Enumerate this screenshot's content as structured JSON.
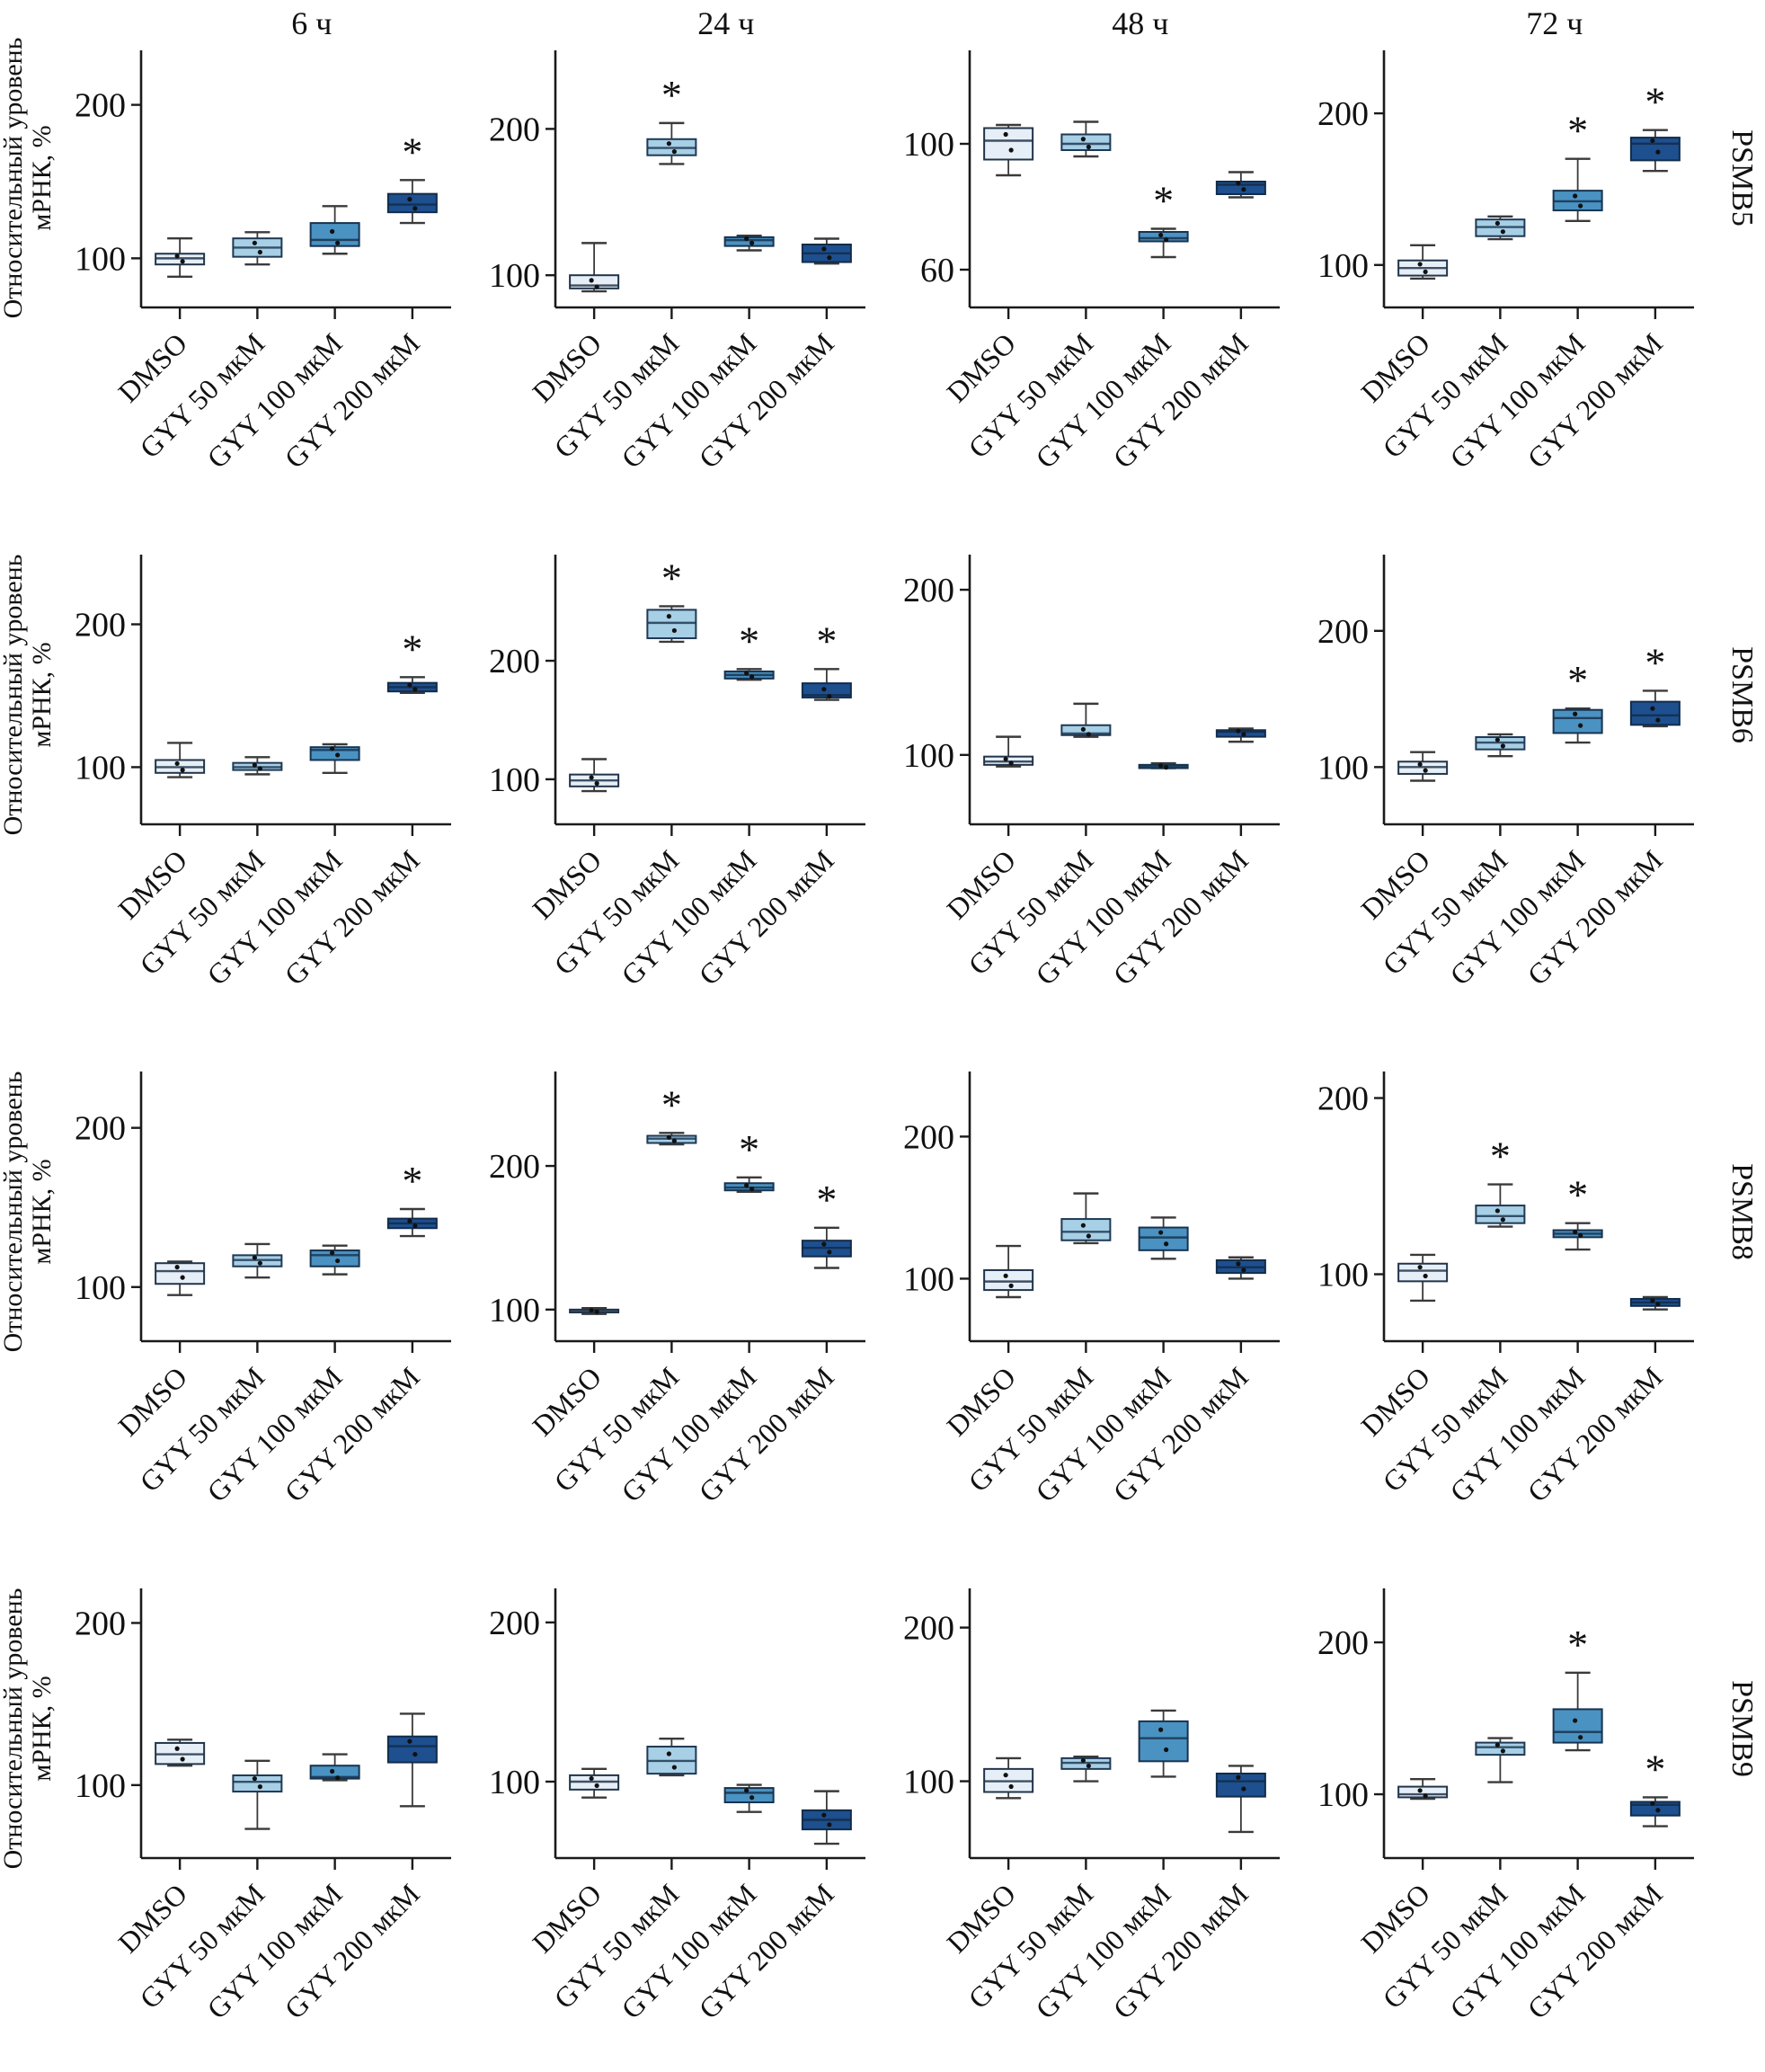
{
  "figure": {
    "ylabel_line1": "Относительный уровень",
    "ylabel_line2": "мРНК, %",
    "col_titles": [
      "6 ч",
      "24 ч",
      "48 ч",
      "72 ч"
    ],
    "row_labels": [
      "PSMB5",
      "PSMB6",
      "PSMB8",
      "PSMB9"
    ],
    "categories": [
      "DMSO",
      "GYY 50 мкМ",
      "GYY 100 мкМ",
      "GYY 200 мкМ"
    ],
    "significance_marker": "*",
    "colors": {
      "fills": [
        "#e6eff7",
        "#a7cfe5",
        "#4a92c1",
        "#1e4f8e"
      ],
      "edges": [
        "#22344a",
        "#1f3955",
        "#173350",
        "#122c4a"
      ],
      "whisker": "#3a3a3a",
      "axis": "#1a1a1a",
      "dot": "#111111"
    }
  },
  "chart_data": [
    {
      "type": "box",
      "gene": "PSMB5",
      "time": "6 ч",
      "ylim": [
        68,
        232
      ],
      "yticks": [
        100,
        200
      ],
      "boxes": [
        {
          "label": "DMSO",
          "whislo": 88,
          "q1": 96,
          "med": 100,
          "q3": 103,
          "whishi": 113,
          "sig": false
        },
        {
          "label": "GYY 50 мкМ",
          "whislo": 96,
          "q1": 101,
          "med": 107,
          "q3": 113,
          "whishi": 117,
          "sig": false
        },
        {
          "label": "GYY 100 мкМ",
          "whislo": 103,
          "q1": 108,
          "med": 112,
          "q3": 123,
          "whishi": 134,
          "sig": false
        },
        {
          "label": "GYY 200 мкМ",
          "whislo": 123,
          "q1": 130,
          "med": 135,
          "q3": 142,
          "whishi": 151,
          "sig": true
        }
      ]
    },
    {
      "type": "box",
      "gene": "PSMB5",
      "time": "24 ч",
      "ylim": [
        78,
        250
      ],
      "yticks": [
        100,
        200
      ],
      "boxes": [
        {
          "label": "DMSO",
          "whislo": 89,
          "q1": 91,
          "med": 93,
          "q3": 100,
          "whishi": 122,
          "sig": false
        },
        {
          "label": "GYY 50 мкМ",
          "whislo": 176,
          "q1": 182,
          "med": 187,
          "q3": 193,
          "whishi": 204,
          "sig": true
        },
        {
          "label": "GYY 100 мкМ",
          "whislo": 117,
          "q1": 120,
          "med": 124,
          "q3": 126,
          "whishi": 127,
          "sig": false
        },
        {
          "label": "GYY 200 мкМ",
          "whislo": 108,
          "q1": 109,
          "med": 115,
          "q3": 121,
          "whishi": 125,
          "sig": false
        }
      ]
    },
    {
      "type": "box",
      "gene": "PSMB5",
      "time": "48 ч",
      "ylim": [
        48,
        128
      ],
      "yticks": [
        60,
        100
      ],
      "boxes": [
        {
          "label": "DMSO",
          "whislo": 90,
          "q1": 95,
          "med": 101,
          "q3": 105,
          "whishi": 106,
          "sig": false
        },
        {
          "label": "GYY 50 мкМ",
          "whislo": 96,
          "q1": 98,
          "med": 100,
          "q3": 103,
          "whishi": 107,
          "sig": false
        },
        {
          "label": "GYY 100 мкМ",
          "whislo": 64,
          "q1": 69,
          "med": 70,
          "q3": 72,
          "whishi": 73,
          "sig": true
        },
        {
          "label": "GYY 200 мкМ",
          "whislo": 83,
          "q1": 84,
          "med": 87,
          "q3": 88,
          "whishi": 91,
          "sig": false
        }
      ]
    },
    {
      "type": "box",
      "gene": "PSMB5",
      "time": "72 ч",
      "ylim": [
        72,
        238
      ],
      "yticks": [
        100,
        200
      ],
      "boxes": [
        {
          "label": "DMSO",
          "whislo": 91,
          "q1": 93,
          "med": 98,
          "q3": 103,
          "whishi": 113,
          "sig": false
        },
        {
          "label": "GYY 50 мкМ",
          "whislo": 117,
          "q1": 119,
          "med": 125,
          "q3": 130,
          "whishi": 132,
          "sig": false
        },
        {
          "label": "GYY 100 мкМ",
          "whislo": 129,
          "q1": 136,
          "med": 142,
          "q3": 149,
          "whishi": 170,
          "sig": true
        },
        {
          "label": "GYY 200 мкМ",
          "whislo": 162,
          "q1": 169,
          "med": 180,
          "q3": 184,
          "whishi": 189,
          "sig": true
        }
      ]
    },
    {
      "type": "box",
      "gene": "PSMB6",
      "time": "6 ч",
      "ylim": [
        60,
        245
      ],
      "yticks": [
        100,
        200
      ],
      "boxes": [
        {
          "label": "DMSO",
          "whislo": 93,
          "q1": 96,
          "med": 100,
          "q3": 105,
          "whishi": 117,
          "sig": false
        },
        {
          "label": "GYY 50 мкМ",
          "whislo": 95,
          "q1": 98,
          "med": 100,
          "q3": 103,
          "whishi": 107,
          "sig": false
        },
        {
          "label": "GYY 100 мкМ",
          "whislo": 96,
          "q1": 105,
          "med": 112,
          "q3": 114,
          "whishi": 116,
          "sig": false
        },
        {
          "label": "GYY 200 мкМ",
          "whislo": 152,
          "q1": 153,
          "med": 156,
          "q3": 159,
          "whishi": 163,
          "sig": true
        }
      ]
    },
    {
      "type": "box",
      "gene": "PSMB6",
      "time": "24 ч",
      "ylim": [
        62,
        285
      ],
      "yticks": [
        100,
        200
      ],
      "boxes": [
        {
          "label": "DMSO",
          "whislo": 90,
          "q1": 94,
          "med": 99,
          "q3": 104,
          "whishi": 117,
          "sig": false
        },
        {
          "label": "GYY 50 мкМ",
          "whislo": 216,
          "q1": 219,
          "med": 232,
          "q3": 243,
          "whishi": 246,
          "sig": true
        },
        {
          "label": "GYY 100 мкМ",
          "whislo": 184,
          "q1": 185,
          "med": 188,
          "q3": 191,
          "whishi": 193,
          "sig": true
        },
        {
          "label": "GYY 200 мкМ",
          "whislo": 167,
          "q1": 169,
          "med": 171,
          "q3": 181,
          "whishi": 193,
          "sig": true
        }
      ]
    },
    {
      "type": "box",
      "gene": "PSMB6",
      "time": "48 ч",
      "ylim": [
        58,
        218
      ],
      "yticks": [
        100,
        200
      ],
      "boxes": [
        {
          "label": "DMSO",
          "whislo": 93,
          "q1": 94,
          "med": 96,
          "q3": 99,
          "whishi": 111,
          "sig": false
        },
        {
          "label": "GYY 50 мкМ",
          "whislo": 111,
          "q1": 112,
          "med": 113,
          "q3": 118,
          "whishi": 131,
          "sig": false
        },
        {
          "label": "GYY 100 мкМ",
          "whislo": 92,
          "q1": 92,
          "med": 93,
          "q3": 94,
          "whishi": 95,
          "sig": false
        },
        {
          "label": "GYY 200 мкМ",
          "whislo": 108,
          "q1": 111,
          "med": 114,
          "q3": 115,
          "whishi": 116,
          "sig": false
        }
      ]
    },
    {
      "type": "box",
      "gene": "PSMB6",
      "time": "72 ч",
      "ylim": [
        58,
        252
      ],
      "yticks": [
        100,
        200
      ],
      "boxes": [
        {
          "label": "DMSO",
          "whislo": 90,
          "q1": 95,
          "med": 100,
          "q3": 104,
          "whishi": 111,
          "sig": false
        },
        {
          "label": "GYY 50 мкМ",
          "whislo": 108,
          "q1": 113,
          "med": 118,
          "q3": 122,
          "whishi": 124,
          "sig": false
        },
        {
          "label": "GYY 100 мкМ",
          "whislo": 118,
          "q1": 125,
          "med": 136,
          "q3": 142,
          "whishi": 143,
          "sig": true
        },
        {
          "label": "GYY 200 мкМ",
          "whislo": 130,
          "q1": 131,
          "med": 138,
          "q3": 148,
          "whishi": 156,
          "sig": true
        }
      ]
    },
    {
      "type": "box",
      "gene": "PSMB8",
      "time": "6 ч",
      "ylim": [
        66,
        232
      ],
      "yticks": [
        100,
        200
      ],
      "boxes": [
        {
          "label": "DMSO",
          "whislo": 95,
          "q1": 102,
          "med": 110,
          "q3": 115,
          "whishi": 116,
          "sig": false
        },
        {
          "label": "GYY 50 мкМ",
          "whislo": 106,
          "q1": 113,
          "med": 117,
          "q3": 120,
          "whishi": 127,
          "sig": false
        },
        {
          "label": "GYY 100 мкМ",
          "whislo": 108,
          "q1": 113,
          "med": 120,
          "q3": 123,
          "whishi": 126,
          "sig": false
        },
        {
          "label": "GYY 200 мкМ",
          "whislo": 132,
          "q1": 137,
          "med": 140,
          "q3": 143,
          "whishi": 149,
          "sig": true
        }
      ]
    },
    {
      "type": "box",
      "gene": "PSMB8",
      "time": "24 ч",
      "ylim": [
        78,
        262
      ],
      "yticks": [
        100,
        200
      ],
      "boxes": [
        {
          "label": "DMSO",
          "whislo": 97,
          "q1": 98,
          "med": 99,
          "q3": 100,
          "whishi": 101,
          "sig": false
        },
        {
          "label": "GYY 50 мкМ",
          "whislo": 215,
          "q1": 216,
          "med": 219,
          "q3": 221,
          "whishi": 223,
          "sig": true
        },
        {
          "label": "GYY 100 мкМ",
          "whislo": 182,
          "q1": 183,
          "med": 185,
          "q3": 188,
          "whishi": 192,
          "sig": true
        },
        {
          "label": "GYY 200 мкМ",
          "whislo": 129,
          "q1": 137,
          "med": 143,
          "q3": 148,
          "whishi": 157,
          "sig": true
        }
      ]
    },
    {
      "type": "box",
      "gene": "PSMB8",
      "time": "48 ч",
      "ylim": [
        56,
        242
      ],
      "yticks": [
        100,
        200
      ],
      "boxes": [
        {
          "label": "DMSO",
          "whislo": 87,
          "q1": 92,
          "med": 98,
          "q3": 106,
          "whishi": 123,
          "sig": false
        },
        {
          "label": "GYY 50 мкМ",
          "whislo": 125,
          "q1": 127,
          "med": 133,
          "q3": 142,
          "whishi": 160,
          "sig": false
        },
        {
          "label": "GYY 100 мкМ",
          "whislo": 114,
          "q1": 120,
          "med": 129,
          "q3": 136,
          "whishi": 143,
          "sig": false
        },
        {
          "label": "GYY 200 мкМ",
          "whislo": 100,
          "q1": 104,
          "med": 108,
          "q3": 113,
          "whishi": 115,
          "sig": false
        }
      ]
    },
    {
      "type": "box",
      "gene": "PSMB8",
      "time": "72 ч",
      "ylim": [
        62,
        212
      ],
      "yticks": [
        100,
        200
      ],
      "boxes": [
        {
          "label": "DMSO",
          "whislo": 85,
          "q1": 96,
          "med": 102,
          "q3": 106,
          "whishi": 111,
          "sig": false
        },
        {
          "label": "GYY 50 мкМ",
          "whislo": 127,
          "q1": 129,
          "med": 133,
          "q3": 139,
          "whishi": 151,
          "sig": true
        },
        {
          "label": "GYY 100 мкМ",
          "whislo": 114,
          "q1": 121,
          "med": 123,
          "q3": 125,
          "whishi": 129,
          "sig": true
        },
        {
          "label": "GYY 200 мкМ",
          "whislo": 80,
          "q1": 82,
          "med": 84,
          "q3": 86,
          "whishi": 87,
          "sig": false
        }
      ]
    },
    {
      "type": "box",
      "gene": "PSMB9",
      "time": "6 ч",
      "ylim": [
        55,
        218
      ],
      "yticks": [
        100,
        200
      ],
      "boxes": [
        {
          "label": "DMSO",
          "whislo": 112,
          "q1": 113,
          "med": 119,
          "q3": 126,
          "whishi": 128,
          "sig": false
        },
        {
          "label": "GYY 50 мкМ",
          "whislo": 73,
          "q1": 96,
          "med": 102,
          "q3": 106,
          "whishi": 115,
          "sig": false
        },
        {
          "label": "GYY 100 мкМ",
          "whislo": 103,
          "q1": 104,
          "med": 105,
          "q3": 112,
          "whishi": 119,
          "sig": false
        },
        {
          "label": "GYY 200 мкМ",
          "whislo": 87,
          "q1": 114,
          "med": 124,
          "q3": 130,
          "whishi": 144,
          "sig": false
        }
      ]
    },
    {
      "type": "box",
      "gene": "PSMB9",
      "time": "24 ч",
      "ylim": [
        52,
        218
      ],
      "yticks": [
        100,
        200
      ],
      "boxes": [
        {
          "label": "DMSO",
          "whislo": 90,
          "q1": 95,
          "med": 100,
          "q3": 104,
          "whishi": 108,
          "sig": false
        },
        {
          "label": "GYY 50 мкМ",
          "whislo": 104,
          "q1": 105,
          "med": 113,
          "q3": 122,
          "whishi": 127,
          "sig": false
        },
        {
          "label": "GYY 100 мкМ",
          "whislo": 81,
          "q1": 87,
          "med": 93,
          "q3": 96,
          "whishi": 98,
          "sig": false
        },
        {
          "label": "GYY 200 мкМ",
          "whislo": 61,
          "q1": 70,
          "med": 76,
          "q3": 82,
          "whishi": 94,
          "sig": false
        }
      ]
    },
    {
      "type": "box",
      "gene": "PSMB9",
      "time": "48 ч",
      "ylim": [
        50,
        222
      ],
      "yticks": [
        100,
        200
      ],
      "boxes": [
        {
          "label": "DMSO",
          "whislo": 89,
          "q1": 93,
          "med": 100,
          "q3": 108,
          "whishi": 115,
          "sig": false
        },
        {
          "label": "GYY 50 мкМ",
          "whislo": 100,
          "q1": 108,
          "med": 112,
          "q3": 115,
          "whishi": 116,
          "sig": false
        },
        {
          "label": "GYY 100 мкМ",
          "whislo": 103,
          "q1": 113,
          "med": 128,
          "q3": 139,
          "whishi": 146,
          "sig": false
        },
        {
          "label": "GYY 200 мкМ",
          "whislo": 67,
          "q1": 90,
          "med": 100,
          "q3": 105,
          "whishi": 110,
          "sig": false
        }
      ]
    },
    {
      "type": "box",
      "gene": "PSMB9",
      "time": "72 ч",
      "ylim": [
        58,
        232
      ],
      "yticks": [
        100,
        200
      ],
      "boxes": [
        {
          "label": "DMSO",
          "whislo": 97,
          "q1": 98,
          "med": 100,
          "q3": 105,
          "whishi": 110,
          "sig": false
        },
        {
          "label": "GYY 50 мкМ",
          "whislo": 108,
          "q1": 126,
          "med": 131,
          "q3": 134,
          "whishi": 137,
          "sig": false
        },
        {
          "label": "GYY 100 мкМ",
          "whislo": 129,
          "q1": 134,
          "med": 141,
          "q3": 156,
          "whishi": 180,
          "sig": true
        },
        {
          "label": "GYY 200 мкМ",
          "whislo": 79,
          "q1": 86,
          "med": 93,
          "q3": 95,
          "whishi": 98,
          "sig": true
        }
      ]
    }
  ]
}
